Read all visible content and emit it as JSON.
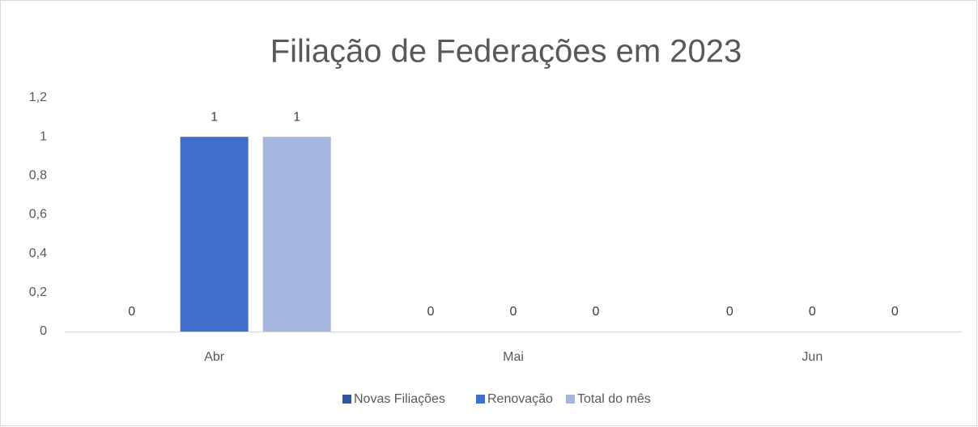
{
  "chart_data": {
    "type": "bar",
    "title": "Filiação de Federações em 2023",
    "categories": [
      "Abr",
      "Mai",
      "Jun"
    ],
    "series": [
      {
        "name": "Novas Filiações",
        "color": "#2f55a4",
        "values": [
          0,
          0,
          0
        ]
      },
      {
        "name": "Renovação",
        "color": "#3f6fca",
        "values": [
          1,
          0,
          0
        ]
      },
      {
        "name": "Total do mês",
        "color": "#a7b6df",
        "values": [
          1,
          0,
          0
        ]
      }
    ],
    "ylim": [
      0,
      1.2
    ],
    "yticks": [
      0,
      {
        "value": 0.2,
        "label": "0,2"
      },
      {
        "value": 0.4,
        "label": "0,4"
      },
      {
        "value": 0.6,
        "label": "0,6"
      },
      {
        "value": 0.8,
        "label": "0,8"
      },
      1,
      {
        "value": 1.2,
        "label": "1,2"
      }
    ],
    "grid": false,
    "legend": "bottom"
  }
}
